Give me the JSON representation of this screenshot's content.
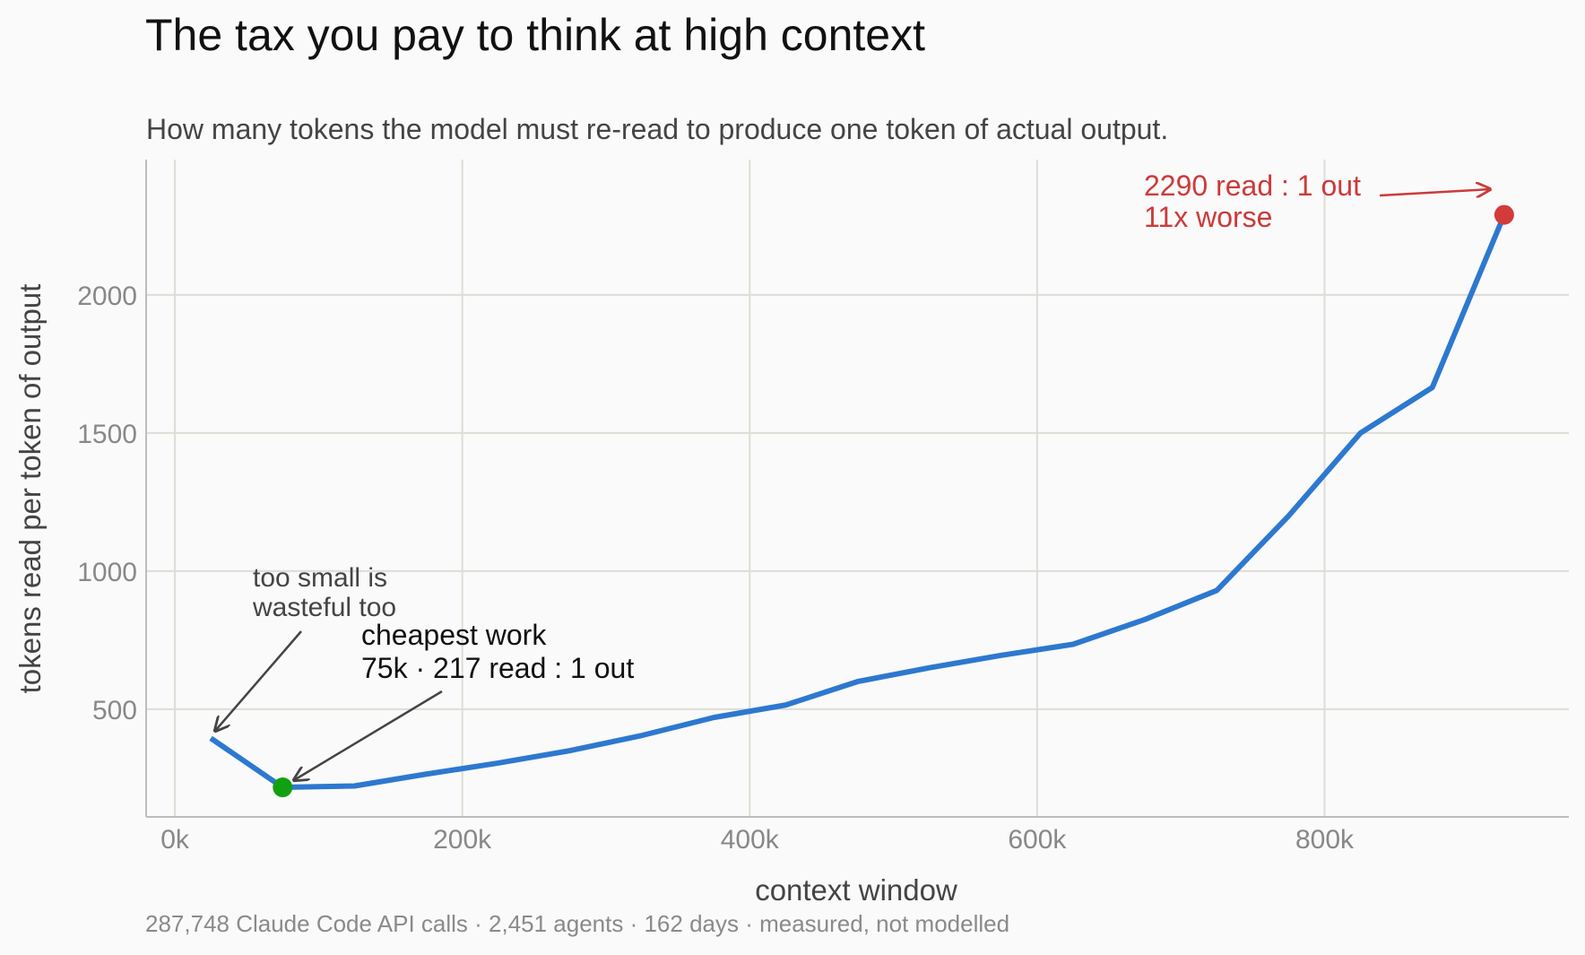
{
  "chart_data": {
    "type": "line",
    "title": "The tax you pay to think at high context",
    "subtitle": "How many tokens the model must re-read to produce one token of actual output.",
    "xlabel": "context window",
    "ylabel": "tokens read per token of output",
    "footer": "287,748 Claude Code API calls · 2,451 agents · 162 days · measured, not modelled",
    "xlim": [
      -20000,
      970000
    ],
    "ylim": [
      110,
      2490
    ],
    "x_ticks": [
      {
        "value": 0,
        "label": "0k"
      },
      {
        "value": 200000,
        "label": "200k"
      },
      {
        "value": 400000,
        "label": "400k"
      },
      {
        "value": 600000,
        "label": "600k"
      },
      {
        "value": 800000,
        "label": "800k"
      }
    ],
    "y_ticks": [
      {
        "value": 500,
        "label": "500"
      },
      {
        "value": 1000,
        "label": "1000"
      },
      {
        "value": 1500,
        "label": "1500"
      },
      {
        "value": 2000,
        "label": "2000"
      }
    ],
    "grid": true,
    "series": [
      {
        "color": "#2d78d0",
        "x": [
          25000,
          75000,
          125000,
          175000,
          225000,
          275000,
          325000,
          375000,
          425000,
          475000,
          525000,
          575000,
          625000,
          675000,
          725000,
          775000,
          825000,
          875000,
          925000
        ],
        "y": [
          395,
          217,
          222,
          265,
          305,
          350,
          405,
          470,
          515,
          600,
          650,
          695,
          735,
          825,
          930,
          1200,
          1500,
          1665,
          2290
        ]
      }
    ],
    "markers": [
      {
        "name": "cheapest",
        "x": 75000,
        "y": 217,
        "color": "#11a011"
      },
      {
        "name": "worst",
        "x": 925000,
        "y": 2290,
        "color": "#d33b3b"
      }
    ],
    "annotations": {
      "too_small_line1": "too small is",
      "too_small_line2": "wasteful too",
      "cheapest_line1": "cheapest work",
      "cheapest_line2": "75k · 217 read : 1 out",
      "worst_line1": "2290 read : 1 out",
      "worst_line2": "11x worse"
    },
    "colors": {
      "line": "#2d78d0",
      "grid": "#dedcd6",
      "axis": "#bdbdbd",
      "annotation_red": "#cc3a3a",
      "annotation_gray": "#444444"
    }
  }
}
